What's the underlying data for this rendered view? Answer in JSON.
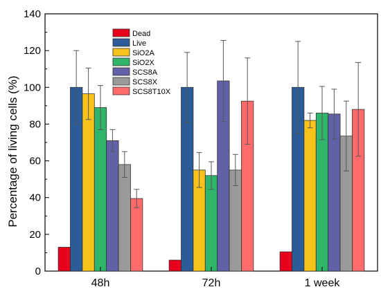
{
  "chart_data": {
    "type": "bar",
    "title": "",
    "xlabel": "",
    "ylabel": "Percentage of living cells (%)",
    "ylim": [
      0,
      140
    ],
    "yticks": [
      0,
      20,
      40,
      60,
      80,
      100,
      120,
      140
    ],
    "grid": false,
    "legend_position": "top-left",
    "categories": [
      "48h",
      "72h",
      "1 week"
    ],
    "series": [
      {
        "name": "Dead",
        "color": "#e8001c",
        "values": [
          13,
          6,
          10.5
        ],
        "errors": [
          null,
          null,
          null
        ]
      },
      {
        "name": "Live",
        "color": "#2b5c98",
        "values": [
          100,
          100,
          100
        ],
        "errors": [
          20,
          19,
          25
        ]
      },
      {
        "name": "SiO2A",
        "color": "#f7c31a",
        "values": [
          96.5,
          55,
          82
        ],
        "errors": [
          14,
          9.5,
          4
        ]
      },
      {
        "name": "SiO2X",
        "color": "#2fb56a",
        "values": [
          89,
          52,
          86
        ],
        "errors": [
          12,
          7.5,
          14.5
        ]
      },
      {
        "name": "SCS8A",
        "color": "#6261a8",
        "values": [
          71,
          103.5,
          85.5
        ],
        "errors": [
          6,
          22,
          13.5
        ]
      },
      {
        "name": "SCS8X",
        "color": "#9a9a9a",
        "values": [
          58,
          55,
          73.5
        ],
        "errors": [
          7,
          8.5,
          19
        ]
      },
      {
        "name": "SCS8T10X",
        "color": "#ff6b6b",
        "values": [
          39.5,
          92.5,
          88
        ],
        "errors": [
          5,
          23.5,
          25.5
        ]
      }
    ]
  }
}
